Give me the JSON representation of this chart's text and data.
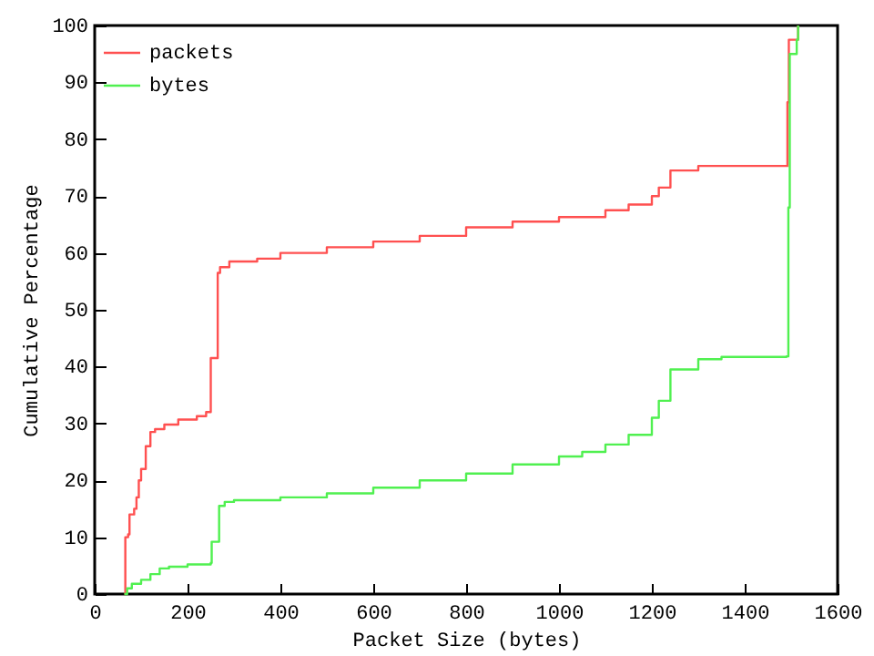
{
  "chart_data": {
    "type": "step",
    "xlabel": "Packet Size (bytes)",
    "ylabel": "Cumulative Percentage",
    "xlim": [
      0,
      1600
    ],
    "xticks": [
      0,
      200,
      400,
      600,
      800,
      1000,
      1200,
      1400,
      1600
    ],
    "ylim": [
      0,
      100
    ],
    "yticks": [
      0,
      10,
      20,
      30,
      40,
      50,
      60,
      70,
      80,
      90,
      100
    ],
    "grid": false,
    "legend": "top left",
    "marker": "none",
    "line_style": "solid",
    "series": [
      {
        "name": "packets",
        "color": "#ff5050",
        "x": [
          64,
          66,
          72,
          75,
          85,
          90,
          95,
          100,
          110,
          120,
          130,
          150,
          180,
          220,
          240,
          250,
          262,
          265,
          270,
          290,
          350,
          400,
          500,
          600,
          700,
          800,
          900,
          1000,
          1100,
          1150,
          1200,
          1215,
          1240,
          1290,
          1300,
          1490,
          1492,
          1495,
          1512,
          1515
        ],
        "values": [
          0,
          10,
          10.5,
          14,
          15,
          17,
          20,
          22,
          26,
          28.5,
          29,
          29.8,
          30.7,
          31.3,
          32,
          41.5,
          41.5,
          56.5,
          57.5,
          58.5,
          59,
          60,
          61,
          62,
          63,
          64.5,
          65.5,
          66.3,
          67.5,
          68.5,
          70,
          71.5,
          74.5,
          74.5,
          75.3,
          75.3,
          86.5,
          97.5,
          97.5,
          100
        ]
      },
      {
        "name": "bytes",
        "color": "#50f050",
        "x": [
          64,
          70,
          80,
          100,
          120,
          140,
          160,
          200,
          240,
          250,
          252,
          265,
          268,
          280,
          300,
          400,
          500,
          600,
          700,
          800,
          900,
          1000,
          1050,
          1100,
          1150,
          1200,
          1215,
          1240,
          1290,
          1300,
          1350,
          1490,
          1494,
          1497,
          1510,
          1512,
          1515
        ],
        "values": [
          0,
          1,
          1.8,
          2.5,
          3.5,
          4.5,
          4.8,
          5.2,
          5.2,
          5.5,
          9.2,
          9.2,
          15.5,
          16.2,
          16.5,
          17,
          17.7,
          18.7,
          20,
          21.2,
          22.8,
          24.2,
          25,
          26.3,
          28,
          31,
          34,
          39.5,
          39.5,
          41.3,
          41.7,
          41.8,
          68,
          95,
          95,
          97.5,
          100
        ]
      }
    ]
  }
}
